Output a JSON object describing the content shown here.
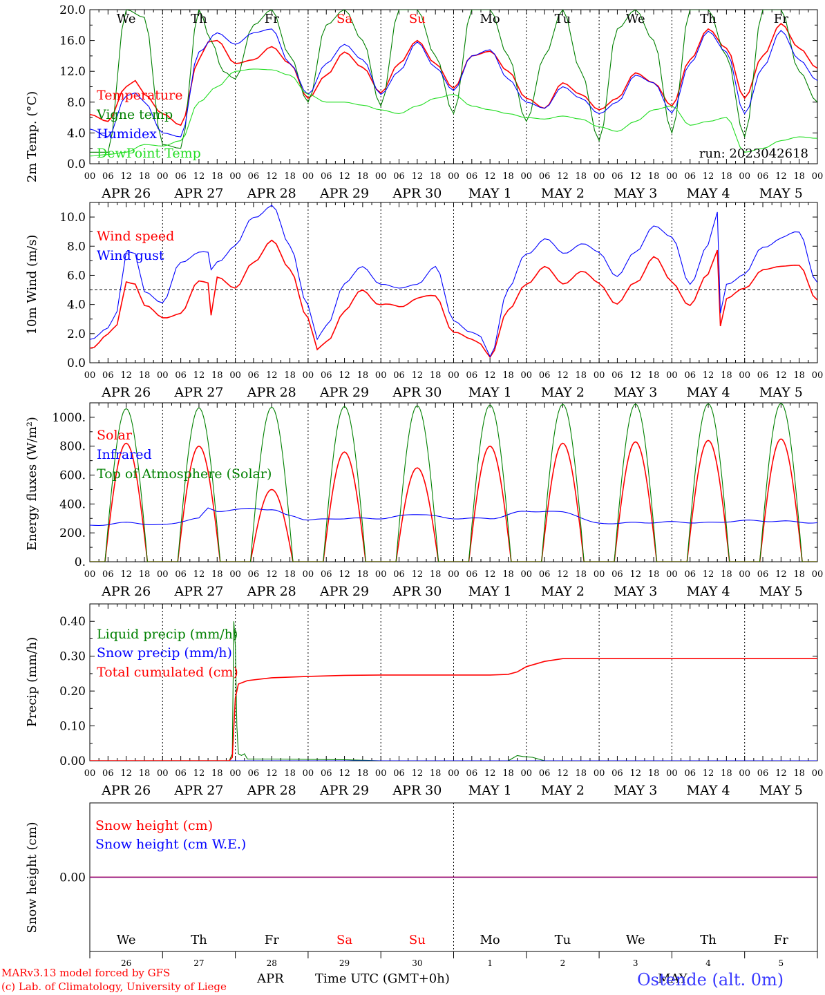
{
  "colors": {
    "red": "#ff0000",
    "green": "#008000",
    "blue": "#0000ff",
    "lightgreen": "#22dd22",
    "purple": "#800080",
    "axis": "#000000"
  },
  "days": [
    "We",
    "Th",
    "Fr",
    "Sa",
    "Su",
    "Mo",
    "Tu",
    "We",
    "Th",
    "Fr"
  ],
  "weekend_days": [
    3,
    4
  ],
  "hour_labels": [
    "00",
    "06",
    "12",
    "18"
  ],
  "date_labels": [
    "APR 26",
    "APR 27",
    "APR 28",
    "APR 29",
    "APR 30",
    "MAY  1",
    "MAY  2",
    "MAY  3",
    "MAY  4",
    "MAY  5"
  ],
  "footer": {
    "dates": [
      "26",
      "27",
      "28",
      "29",
      "30",
      "1",
      "2",
      "3",
      "4",
      "5"
    ],
    "month_left": "APR",
    "month_right": "MAY",
    "xlabel": "Time UTC (GMT+0h)",
    "credit1": "MARv3.13 model forced by GFS",
    "credit2": "(c) Lab. of Climatology, University of Liege",
    "station": "Ostende (alt. 0m)"
  },
  "chart_data": [
    {
      "type": "line",
      "ylabel": "2m Temp. (°C)",
      "ylim": [
        0,
        20
      ],
      "yticks": [
        "0.0",
        "4.0",
        "8.0",
        "12.0",
        "16.0",
        "20.0"
      ],
      "annotation": "run: 2023042618",
      "x_unit": "hours since APR 26 00 UTC",
      "series": [
        {
          "name": "Temperature",
          "color": "red",
          "x": [
            0,
            6,
            12,
            15,
            18,
            24,
            30,
            36,
            39,
            42,
            48,
            54,
            60,
            66,
            72,
            78,
            84,
            90,
            96,
            102,
            108,
            114,
            120,
            126,
            132,
            138,
            144,
            150,
            156,
            162,
            168,
            174,
            180,
            186,
            192,
            198,
            204,
            210,
            216,
            222,
            228,
            234,
            240
          ],
          "y": [
            6.4,
            5.5,
            10.0,
            10.8,
            9.0,
            6.5,
            5.0,
            13.5,
            15.8,
            16.0,
            13.0,
            13.5,
            15.2,
            13.0,
            8.5,
            11.5,
            14.5,
            12.5,
            9.2,
            13.0,
            16.0,
            13.0,
            9.8,
            14.0,
            14.6,
            12.0,
            8.5,
            7.2,
            10.5,
            9.0,
            7.0,
            8.5,
            11.8,
            10.5,
            7.5,
            13.5,
            17.5,
            15.0,
            8.5,
            14.0,
            18.2,
            15.0,
            12.4
          ]
        },
        {
          "name": "Vigne temp",
          "color": "green",
          "x": [
            0,
            6,
            12,
            18,
            24,
            30,
            36,
            40,
            44,
            48,
            54,
            60,
            66,
            72,
            78,
            84,
            90,
            96,
            102,
            108,
            114,
            120,
            126,
            132,
            138,
            144,
            150,
            156,
            162,
            168,
            174,
            180,
            186,
            192,
            198,
            204,
            210,
            216,
            222,
            228,
            234,
            240
          ],
          "y": [
            1.5,
            1.5,
            20.0,
            19.0,
            2.5,
            2.0,
            20.0,
            16.0,
            12.0,
            11.0,
            18.0,
            20.0,
            14.0,
            8.0,
            18.0,
            20.0,
            16.0,
            7.5,
            20.0,
            20.0,
            14.0,
            6.5,
            20.0,
            20.0,
            14.0,
            5.5,
            14.0,
            20.0,
            12.0,
            3.0,
            17.5,
            20.0,
            16.0,
            4.0,
            20.0,
            20.0,
            14.0,
            3.5,
            20.0,
            20.0,
            12.0,
            8.0
          ]
        },
        {
          "name": "Humidex",
          "color": "blue",
          "x": [
            0,
            6,
            12,
            15,
            18,
            24,
            30,
            36,
            42,
            48,
            54,
            60,
            66,
            72,
            78,
            84,
            90,
            96,
            102,
            108,
            114,
            120,
            126,
            132,
            138,
            144,
            150,
            156,
            162,
            168,
            174,
            180,
            186,
            192,
            198,
            204,
            210,
            216,
            222,
            228,
            234,
            240
          ],
          "y": [
            4.5,
            3.5,
            8.8,
            9.2,
            8.0,
            4.0,
            3.5,
            14.5,
            17.0,
            15.5,
            17.0,
            17.5,
            13.0,
            9.0,
            13.0,
            15.5,
            13.5,
            9.0,
            12.0,
            15.8,
            12.5,
            9.5,
            14.0,
            14.8,
            11.0,
            8.0,
            7.2,
            10.0,
            8.5,
            6.5,
            8.0,
            11.5,
            10.5,
            6.6,
            13.0,
            17.2,
            14.5,
            6.5,
            12.5,
            17.3,
            13.5,
            10.8
          ]
        },
        {
          "name": "DewPoint Temp",
          "color": "lightgreen",
          "x": [
            0,
            6,
            12,
            18,
            24,
            30,
            36,
            42,
            48,
            54,
            60,
            66,
            72,
            78,
            84,
            90,
            96,
            102,
            108,
            114,
            120,
            126,
            132,
            138,
            144,
            150,
            156,
            162,
            168,
            174,
            180,
            186,
            192,
            198,
            204,
            210,
            216,
            222,
            228,
            234,
            240
          ],
          "y": [
            1.0,
            1.2,
            1.5,
            2.5,
            2.3,
            3.0,
            8.0,
            10.0,
            12.0,
            12.3,
            12.2,
            11.5,
            9.0,
            8.0,
            8.0,
            7.6,
            7.0,
            6.5,
            7.5,
            8.5,
            9.0,
            7.5,
            7.0,
            6.5,
            6.0,
            5.8,
            6.2,
            5.8,
            4.8,
            4.2,
            5.5,
            7.0,
            7.5,
            5.0,
            5.5,
            6.0,
            1.5,
            2.0,
            3.0,
            3.5,
            3.3
          ]
        }
      ]
    },
    {
      "type": "line",
      "ylabel": "10m Wind (m/s)",
      "ylim": [
        0,
        11
      ],
      "yticks": [
        "0.0",
        "2.0",
        "4.0",
        "6.0",
        "8.0",
        "10.0"
      ],
      "reference_line": 5.0,
      "x_unit": "hours since APR 26 00 UTC",
      "series": [
        {
          "name": "Wind speed",
          "color": "red",
          "x": [
            0,
            6,
            9,
            12,
            15,
            18,
            24,
            30,
            36,
            39,
            40,
            42,
            48,
            54,
            60,
            66,
            72,
            75,
            78,
            84,
            90,
            96,
            102,
            108,
            114,
            120,
            126,
            129,
            132,
            138,
            144,
            150,
            156,
            162,
            168,
            174,
            180,
            186,
            192,
            198,
            204,
            207,
            208,
            210,
            216,
            222,
            228,
            234,
            240
          ],
          "y": [
            1.0,
            2.0,
            2.5,
            5.5,
            5.5,
            4.0,
            3.0,
            3.5,
            5.5,
            5.5,
            3.3,
            6.0,
            5.0,
            7.0,
            8.3,
            6.5,
            3.0,
            0.8,
            1.5,
            3.5,
            5.0,
            4.0,
            3.8,
            4.5,
            4.5,
            2.2,
            1.5,
            1.3,
            0.5,
            3.5,
            5.5,
            6.5,
            5.5,
            6.2,
            5.5,
            4.0,
            5.5,
            7.3,
            5.5,
            4.0,
            6.0,
            7.8,
            2.5,
            4.5,
            5.0,
            6.5,
            6.5,
            6.8,
            4.2
          ]
        },
        {
          "name": "Wind gust",
          "color": "blue",
          "x": [
            0,
            6,
            9,
            12,
            15,
            18,
            24,
            30,
            36,
            39,
            40,
            42,
            48,
            54,
            60,
            66,
            72,
            75,
            78,
            84,
            90,
            96,
            102,
            108,
            114,
            120,
            126,
            129,
            132,
            138,
            144,
            150,
            156,
            162,
            168,
            174,
            180,
            186,
            192,
            198,
            204,
            207,
            208,
            210,
            216,
            222,
            228,
            234,
            240
          ],
          "y": [
            1.5,
            2.5,
            3.5,
            7.5,
            7.5,
            5.0,
            4.0,
            7.0,
            7.5,
            7.5,
            6.5,
            7.0,
            8.0,
            10.0,
            10.8,
            8.0,
            4.0,
            1.5,
            2.5,
            5.5,
            6.5,
            5.5,
            5.0,
            5.5,
            6.5,
            3.0,
            2.0,
            1.7,
            0.5,
            5.0,
            7.5,
            8.5,
            7.5,
            8.2,
            7.5,
            6.0,
            7.5,
            9.5,
            8.5,
            5.5,
            8.0,
            10.3,
            3.5,
            5.5,
            6.0,
            8.0,
            8.5,
            9.0,
            5.5
          ]
        }
      ]
    },
    {
      "type": "line",
      "ylabel": "Energy fluxes (W/m²)",
      "ylim": [
        0,
        1100
      ],
      "yticks": [
        "0.",
        "200.",
        "400.",
        "600.",
        "800.",
        "1000."
      ],
      "x_unit": "hours since APR 26 00 UTC",
      "series": [
        {
          "name": "Solar",
          "color": "red",
          "peaks": [
            820,
            800,
            500,
            760,
            650,
            800,
            820,
            830,
            840,
            850
          ],
          "notes": "diurnal bell curves, sunrise ~05 UTC, sunset ~19 UTC"
        },
        {
          "name": "Infrared",
          "color": "blue",
          "x": [
            0,
            12,
            24,
            36,
            39,
            42,
            48,
            54,
            60,
            66,
            72,
            84,
            96,
            108,
            120,
            132,
            144,
            156,
            168,
            180,
            192,
            204,
            216,
            228,
            240
          ],
          "y": [
            250,
            270,
            255,
            300,
            370,
            350,
            360,
            370,
            360,
            320,
            290,
            300,
            300,
            330,
            300,
            300,
            350,
            345,
            265,
            270,
            275,
            270,
            285,
            280,
            270
          ]
        },
        {
          "name": "Top of Atmosphere (Solar)",
          "color": "green",
          "peaks": [
            1060,
            1065,
            1070,
            1075,
            1080,
            1085,
            1090,
            1092,
            1094,
            1096
          ],
          "notes": "diurnal bell curves, sunrise ~05 UTC, sunset ~19 UTC"
        }
      ]
    },
    {
      "type": "line",
      "ylabel": "Precip (mm/h)",
      "ylim": [
        0,
        0.45
      ],
      "yticks": [
        "0.00",
        "0.10",
        "0.20",
        "0.30",
        "0.40"
      ],
      "x_unit": "hours since APR 26 00 UTC",
      "series": [
        {
          "name": "Liquid precip (mm/h)",
          "color": "green",
          "x": [
            0,
            46,
            47,
            47.5,
            48,
            48.5,
            49,
            50,
            51,
            52,
            60,
            72,
            84,
            96,
            108,
            138,
            139,
            141,
            143,
            146,
            150,
            240
          ],
          "y": [
            0,
            0,
            0.02,
            0.4,
            0.33,
            0.1,
            0.02,
            0.015,
            0.02,
            0.005,
            0.005,
            0.004,
            0.003,
            0,
            0,
            0,
            0.005,
            0.015,
            0.012,
            0.01,
            0,
            0
          ]
        },
        {
          "name": "Snow precip (mm/h)",
          "color": "blue",
          "x": [
            0,
            240
          ],
          "y": [
            0,
            0
          ]
        },
        {
          "name": "Total cumulated (cm)",
          "color": "red",
          "x": [
            0,
            46,
            47,
            48,
            49,
            52,
            60,
            72,
            84,
            96,
            108,
            120,
            132,
            138,
            141,
            144,
            150,
            156,
            240
          ],
          "y": [
            0,
            0,
            0.01,
            0.18,
            0.22,
            0.23,
            0.238,
            0.242,
            0.245,
            0.246,
            0.246,
            0.246,
            0.246,
            0.248,
            0.255,
            0.27,
            0.285,
            0.293,
            0.293
          ]
        }
      ]
    },
    {
      "type": "line",
      "ylabel": "Snow height (cm)",
      "ylim": [
        -1,
        1
      ],
      "yticks": [
        "0.00"
      ],
      "x_unit": "hours since APR 26 00 UTC",
      "series": [
        {
          "name": "Snow height (cm)",
          "color": "red",
          "x": [
            0,
            240
          ],
          "y": [
            0,
            0
          ]
        },
        {
          "name": "Snow height (cm W.E.)",
          "color": "blue",
          "x": [
            0,
            240
          ],
          "y": [
            0,
            0
          ]
        }
      ]
    }
  ]
}
